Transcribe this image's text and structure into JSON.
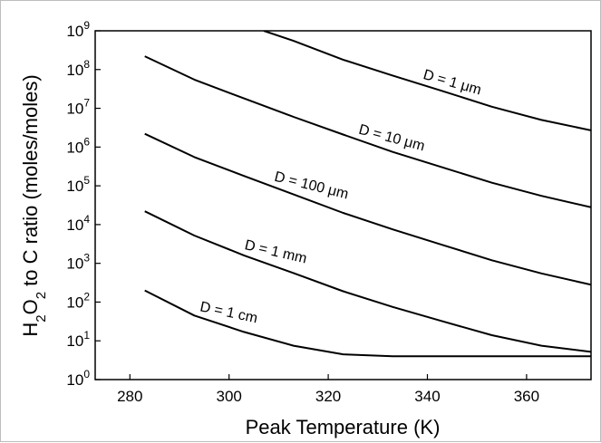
{
  "chart_data": {
    "type": "line",
    "title": "",
    "xlabel": "Peak Temperature (K)",
    "ylabel": "H2O2 to C ratio (moles/moles)",
    "ylabel_parts": {
      "a": "H",
      "a_sub": "2",
      "b": "O",
      "b_sub": "2",
      "c": " to C ratio (moles/moles)"
    },
    "xlim": [
      273,
      373
    ],
    "ylim": [
      1,
      1000000000
    ],
    "yscale": "log",
    "xticks": [
      280,
      300,
      320,
      340,
      360
    ],
    "yticks": [
      {
        "exp": 0,
        "label_base": "10",
        "label_exp": "0"
      },
      {
        "exp": 1,
        "label_base": "10",
        "label_exp": "1"
      },
      {
        "exp": 2,
        "label_base": "10",
        "label_exp": "2"
      },
      {
        "exp": 3,
        "label_base": "10",
        "label_exp": "3"
      },
      {
        "exp": 4,
        "label_base": "10",
        "label_exp": "4"
      },
      {
        "exp": 5,
        "label_base": "10",
        "label_exp": "5"
      },
      {
        "exp": 6,
        "label_base": "10",
        "label_exp": "6"
      },
      {
        "exp": 7,
        "label_base": "10",
        "label_exp": "7"
      },
      {
        "exp": 8,
        "label_base": "10",
        "label_exp": "8"
      },
      {
        "exp": 9,
        "label_base": "10",
        "label_exp": "9"
      }
    ],
    "grid": false,
    "series": [
      {
        "name": "D = 1 μm",
        "x": [
          307,
          313,
          323,
          333,
          343,
          353,
          363,
          373
        ],
        "y": [
          1000000000,
          550000000,
          180000000,
          70000000,
          28000000,
          11000000,
          5000000,
          2700000
        ]
      },
      {
        "name": "D = 10 μm",
        "x": [
          283,
          293,
          303,
          313,
          323,
          333,
          343,
          353,
          363,
          373
        ],
        "y": [
          220000000,
          55000000,
          18000000,
          6000000,
          2100000,
          750000,
          300000,
          120000,
          55000,
          28000
        ]
      },
      {
        "name": "D = 100 μm",
        "x": [
          283,
          293,
          303,
          313,
          323,
          333,
          343,
          353,
          363,
          373
        ],
        "y": [
          2200000,
          550000,
          180000,
          60000,
          20000,
          7500,
          3000,
          1200,
          550,
          280
        ]
      },
      {
        "name": "D = 1 mm",
        "x": [
          283,
          293,
          303,
          313,
          323,
          333,
          343,
          353,
          363,
          373
        ],
        "y": [
          22000,
          5200,
          1600,
          560,
          190,
          75,
          32,
          14,
          7.5,
          5.2
        ]
      },
      {
        "name": "D = 1 cm",
        "x": [
          283,
          293,
          303,
          313,
          323,
          333,
          343,
          353,
          363,
          373
        ],
        "y": [
          200,
          45,
          17,
          7.5,
          4.5,
          4,
          4,
          4,
          4,
          4
        ]
      }
    ],
    "annotations": [
      {
        "text": "D = 1 μm"
      },
      {
        "text": "D = 10 μm"
      },
      {
        "text": "D = 100 μm"
      },
      {
        "text": "D = 1 mm"
      },
      {
        "text": "D = 1 cm"
      }
    ]
  }
}
